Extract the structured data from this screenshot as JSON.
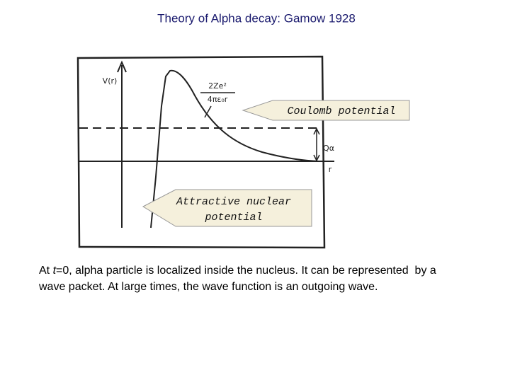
{
  "title": "Theory of Alpha decay: Gamow 1928",
  "diagram": {
    "y_axis_label": "V(r)",
    "x_axis_label": "r",
    "q_label": "Qα",
    "formula_numerator": "2Ze²",
    "formula_denominator": "4πε₀r",
    "callouts": [
      {
        "lines": [
          "Coulomb potential"
        ]
      },
      {
        "lines": [
          "Attractive nuclear",
          "potential"
        ]
      }
    ]
  },
  "body": {
    "lines": [
      [
        "At ",
        "t",
        "=0, alpha particle is localized inside the nucleus. It can be represented  by a"
      ],
      [
        "wave packet. At large times, the wave function is an outgoing wave."
      ]
    ]
  }
}
